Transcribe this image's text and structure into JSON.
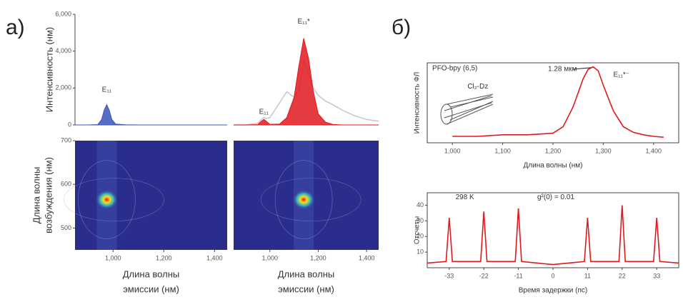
{
  "panel_labels": [
    "а)",
    "б)"
  ],
  "chart_data": [
    {
      "type": "area",
      "ylabel": "Интенсивность (нм)",
      "xlim": [
        850,
        1450
      ],
      "ylim": [
        0,
        6000
      ],
      "yticks": [
        0,
        {
          "value": 2000,
          "label": "2,000"
        },
        {
          "value": 4000,
          "label": "4,000"
        },
        {
          "value": 6000,
          "label": "6,000"
        }
      ],
      "x": [
        850,
        900,
        940,
        955,
        965,
        975,
        985,
        995,
        1010,
        1050,
        1100,
        1200,
        1300,
        1400,
        1450
      ],
      "series": [
        {
          "color": "#3b55b8",
          "fill": true,
          "values": [
            0,
            0,
            20,
            300,
            800,
            1100,
            800,
            300,
            50,
            10,
            0,
            0,
            0,
            0,
            0
          ]
        }
      ],
      "annotations": [
        "E₁₁"
      ]
    },
    {
      "type": "area",
      "xlim": [
        850,
        1450
      ],
      "ylim": [
        0,
        6000
      ],
      "x": [
        850,
        900,
        950,
        965,
        975,
        985,
        1000,
        1040,
        1070,
        1100,
        1120,
        1140,
        1160,
        1180,
        1200,
        1230,
        1260,
        1300,
        1350,
        1400,
        1450
      ],
      "series": [
        {
          "color": "#c8c8d0",
          "fill": false,
          "values": [
            0,
            0,
            100,
            300,
            400,
            350,
            400,
            1200,
            1800,
            1500,
            1900,
            3500,
            2800,
            2000,
            1600,
            1300,
            1100,
            800,
            500,
            300,
            200
          ]
        },
        {
          "color": "#e0191f",
          "fill": true,
          "values": [
            0,
            0,
            20,
            200,
            300,
            200,
            30,
            50,
            400,
            1500,
            3200,
            4700,
            3600,
            1800,
            600,
            150,
            30,
            0,
            0,
            0,
            0
          ]
        }
      ],
      "annotations": [
        "E₁₁",
        "E₁₁*"
      ]
    },
    {
      "type": "heatmap",
      "ylabel": [
        "Длина волны",
        "возбуждения (нм)"
      ],
      "xlabel": [
        "Длина волны",
        "эмиссии (нм)"
      ],
      "xlim": [
        850,
        1450
      ],
      "ylim": [
        450,
        700
      ],
      "xticks": [
        {
          "value": 1000,
          "label": "1,000"
        },
        {
          "value": 1200,
          "label": "1,200"
        },
        {
          "value": 1400,
          "label": "1,400"
        }
      ],
      "yticks": [
        500,
        600,
        700
      ],
      "hotspot": {
        "x": 975,
        "y": 565
      }
    },
    {
      "type": "heatmap",
      "xlabel": [
        "Длина волны",
        "эмиссии (нм)"
      ],
      "xlim": [
        850,
        1450
      ],
      "ylim": [
        450,
        700
      ],
      "xticks": [
        {
          "value": 1000,
          "label": "1,000"
        },
        {
          "value": 1200,
          "label": "1,200"
        },
        {
          "value": 1400,
          "label": "1,400"
        }
      ],
      "hotspot": {
        "x": 1140,
        "y": 565
      }
    },
    {
      "type": "line",
      "ylabel": "Интенсивность ФЛ",
      "xlabel": "Длина волны (нм)",
      "xlim": [
        950,
        1450
      ],
      "ylim": [
        0,
        1
      ],
      "xticks": [
        {
          "value": 1000,
          "label": "1,000"
        },
        {
          "value": 1100,
          "label": "1,100"
        },
        {
          "value": 1200,
          "label": "1,200"
        },
        {
          "value": 1300,
          "label": "1,300"
        },
        {
          "value": 1400,
          "label": "1,400"
        }
      ],
      "x": [
        1000,
        1050,
        1100,
        1150,
        1200,
        1220,
        1240,
        1260,
        1270,
        1280,
        1290,
        1300,
        1320,
        1340,
        1360,
        1380,
        1400,
        1420
      ],
      "series": [
        {
          "color": "#e0191f",
          "fill": false,
          "values": [
            0.08,
            0.08,
            0.1,
            0.1,
            0.12,
            0.2,
            0.45,
            0.8,
            0.92,
            0.95,
            0.9,
            0.72,
            0.4,
            0.2,
            0.13,
            0.1,
            0.08,
            0.07
          ]
        }
      ],
      "annotations": [
        "PFO-bpy (6,5)",
        "Cl₂-Dz",
        "1.28 мкм",
        "E₁₁*⁻"
      ]
    },
    {
      "type": "line",
      "ylabel": "Отсчеты",
      "xlabel": "Время задержки (пс)",
      "xlim": [
        -40,
        40
      ],
      "ylim": [
        0,
        48
      ],
      "xticks": [
        -33,
        -22,
        -11,
        0,
        11,
        22,
        33
      ],
      "yticks": [
        10,
        20,
        30,
        40
      ],
      "x": [
        -40,
        -34,
        -33,
        -32,
        -23,
        -22,
        -21,
        -12,
        -11,
        -10,
        -5,
        0,
        5,
        10,
        11,
        12,
        21,
        22,
        23,
        32,
        33,
        34,
        40
      ],
      "series": [
        {
          "color": "#e0191f",
          "fill": false,
          "values": [
            3,
            4,
            32,
            4,
            4,
            36,
            4,
            4,
            38,
            4,
            3,
            2,
            3,
            4,
            32,
            4,
            4,
            40,
            4,
            4,
            32,
            4,
            3
          ]
        }
      ],
      "annotations": [
        "298 K",
        "g²(0) = 0.01"
      ]
    }
  ]
}
